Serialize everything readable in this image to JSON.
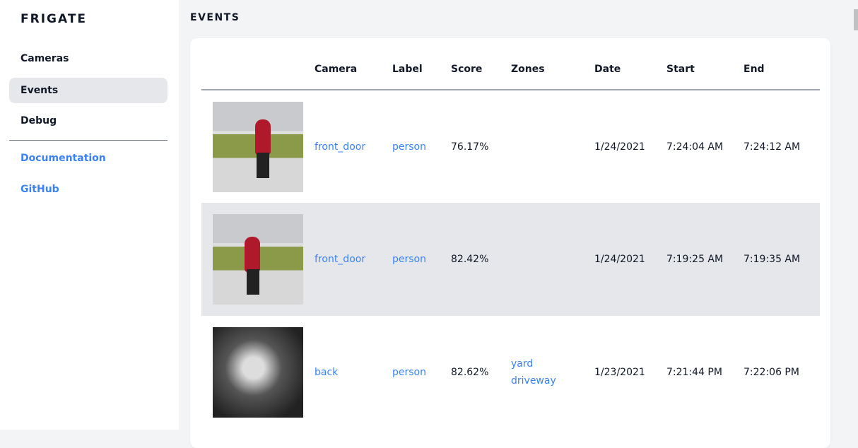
{
  "app": {
    "brand": "FRIGATE"
  },
  "sidebar": {
    "items": [
      {
        "label": "Cameras"
      },
      {
        "label": "Events",
        "active": true
      },
      {
        "label": "Debug"
      }
    ],
    "links": [
      {
        "label": "Documentation"
      },
      {
        "label": "GitHub"
      }
    ]
  },
  "page": {
    "title": "EVENTS"
  },
  "table": {
    "headers": [
      "",
      "Camera",
      "Label",
      "Score",
      "Zones",
      "Date",
      "Start",
      "End"
    ],
    "rows": [
      {
        "camera": "front_door",
        "label": "person",
        "score": "76.17%",
        "zones": [
          "",
          ""
        ],
        "date": "1/24/2021",
        "start": "7:24:04 AM",
        "end": "7:24:12 AM"
      },
      {
        "camera": "front_door",
        "label": "person",
        "score": "82.42%",
        "zones": [
          "",
          ""
        ],
        "date": "1/24/2021",
        "start": "7:19:25 AM",
        "end": "7:19:35 AM"
      },
      {
        "camera": "back",
        "label": "person",
        "score": "82.62%",
        "zones": [
          "yard",
          "driveway"
        ],
        "date": "1/23/2021",
        "start": "7:21:44 PM",
        "end": "7:22:06 PM"
      }
    ]
  },
  "colors": {
    "accent": "#3b82f6",
    "active_bg": "#e5e7eb",
    "page_bg": "#f3f4f6"
  }
}
